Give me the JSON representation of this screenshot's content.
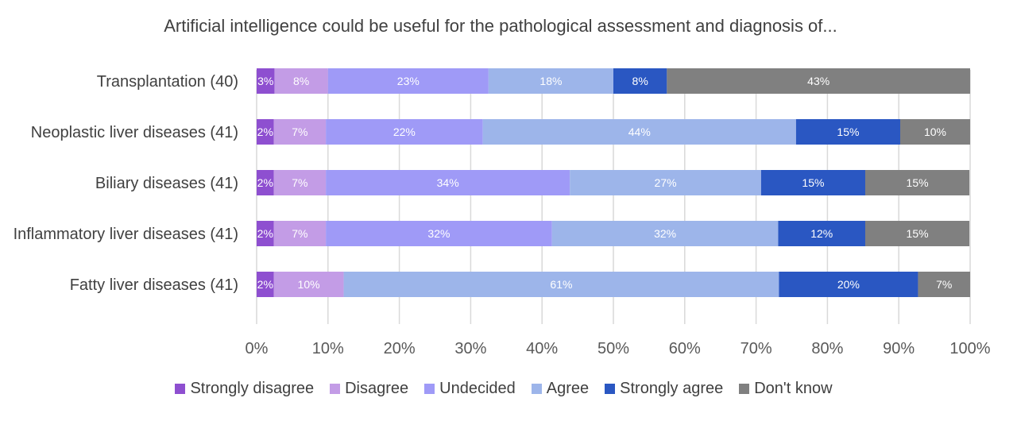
{
  "chart_data": {
    "type": "bar",
    "orientation": "horizontal",
    "stacked": true,
    "title": "Artificial intelligence could be useful for the pathological assessment and diagnosis of...",
    "categories": [
      "Transplantation (40)",
      "Neoplastic liver diseases (41)",
      "Biliary diseases (41)",
      "Inflammatory liver diseases (41)",
      "Fatty liver diseases (41)"
    ],
    "series": [
      {
        "name": "Strongly disagree",
        "color": "#8e4fd0",
        "values": [
          2.5,
          2.4,
          2.4,
          2.4,
          2.4
        ],
        "labels": [
          "3%",
          "2%",
          "2%",
          "2%",
          "2%"
        ]
      },
      {
        "name": "Disagree",
        "color": "#c39ce6",
        "values": [
          7.5,
          7.3,
          7.3,
          7.3,
          9.8
        ],
        "labels": [
          "8%",
          "7%",
          "7%",
          "7%",
          "10%"
        ]
      },
      {
        "name": "Undecided",
        "color": "#9f9af7",
        "values": [
          22.5,
          22.0,
          34.2,
          31.7,
          0
        ],
        "labels": [
          "23%",
          "22%",
          "34%",
          "32%",
          ""
        ]
      },
      {
        "name": "Agree",
        "color": "#9db5ea",
        "values": [
          17.5,
          43.9,
          26.8,
          31.7,
          61.0
        ],
        "labels": [
          "18%",
          "44%",
          "27%",
          "32%",
          "61%"
        ]
      },
      {
        "name": "Strongly agree",
        "color": "#2a57c2",
        "values": [
          7.5,
          14.6,
          14.6,
          12.2,
          19.5
        ],
        "labels": [
          "8%",
          "15%",
          "15%",
          "12%",
          "20%"
        ]
      },
      {
        "name": "Don't know",
        "color": "#808080",
        "values": [
          42.5,
          9.8,
          14.6,
          14.6,
          7.3
        ],
        "labels": [
          "43%",
          "10%",
          "15%",
          "15%",
          "7%"
        ]
      }
    ],
    "xlim": [
      0,
      100
    ],
    "xticks": [
      "0%",
      "10%",
      "20%",
      "30%",
      "40%",
      "50%",
      "60%",
      "70%",
      "80%",
      "90%",
      "100%"
    ],
    "grid": "vertical",
    "legend": "bottom"
  }
}
